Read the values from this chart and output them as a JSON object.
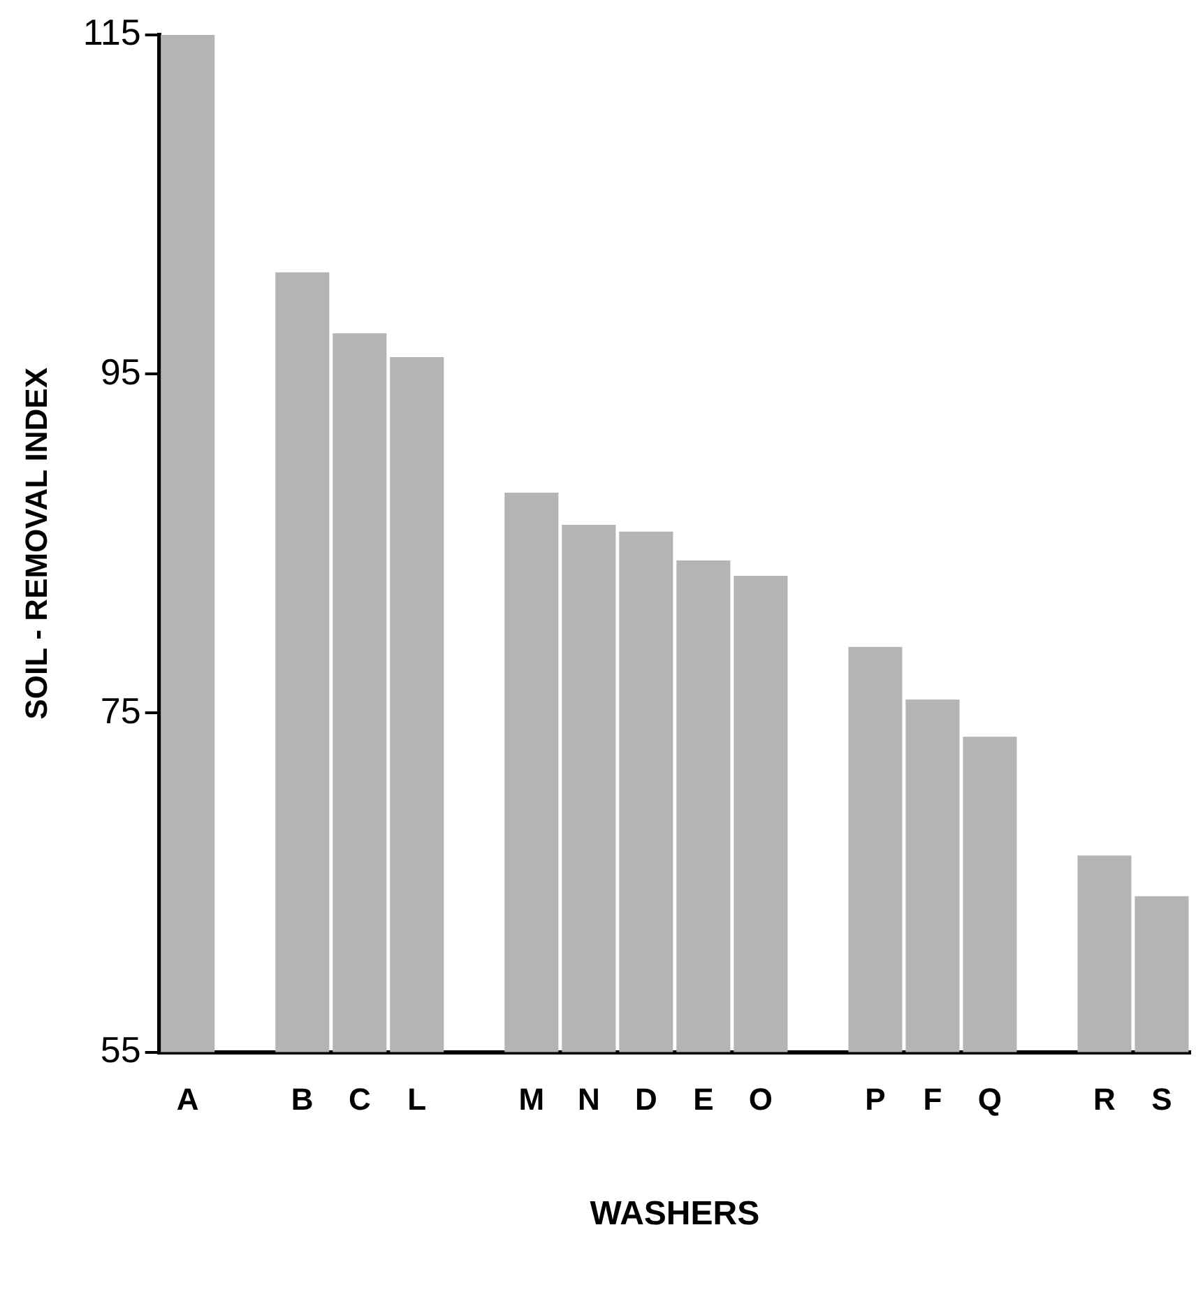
{
  "chart_data": {
    "type": "bar",
    "xlabel": "WASHERS",
    "ylabel": "SOIL - REMOVAL INDEX",
    "categories": [
      "A",
      null,
      "B",
      "C",
      "L",
      null,
      "M",
      "N",
      "D",
      "E",
      "O",
      null,
      "P",
      "F",
      "Q",
      null,
      "R",
      "S"
    ],
    "values": [
      115,
      null,
      101,
      97.4,
      96,
      null,
      88,
      86.1,
      85.7,
      84,
      83.1,
      null,
      78.9,
      75.8,
      73.6,
      null,
      66.6,
      64.2
    ],
    "color": "#b4b4b4",
    "ylim": [
      55,
      115
    ],
    "yticks": [
      55,
      75,
      95,
      115
    ],
    "grid": false
  }
}
